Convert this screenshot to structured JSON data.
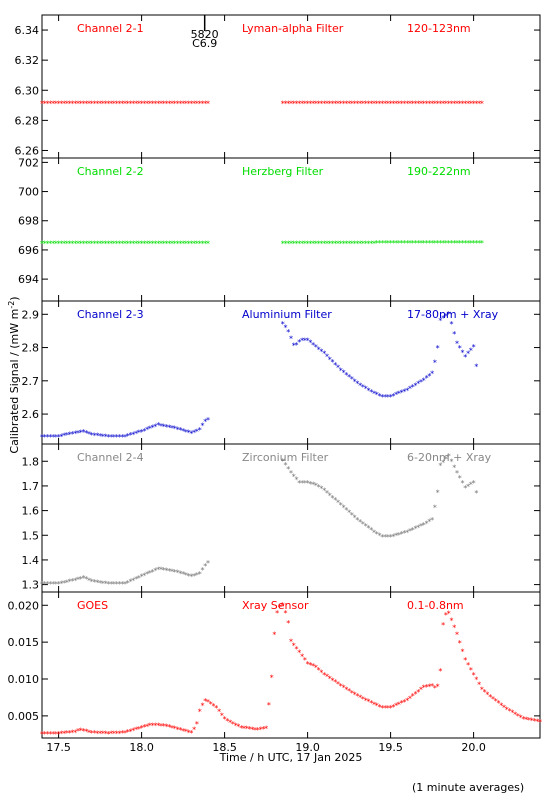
{
  "chart_data": {
    "type": "scatter",
    "xlabel": "Time / h UTC, 17 Jan 2025",
    "ylabel": "Calibrated Signal / (mW m",
    "ylabel_sup": "-2",
    "ylabel_close": ")",
    "xlim": [
      17.4,
      20.4
    ],
    "x_ticks": [
      "17.5",
      "18.0",
      "18.5",
      "19.0",
      "19.5",
      "20.0"
    ],
    "footnote": "(1 minute averages)",
    "annotation": {
      "x": 18.38,
      "line1": "5820",
      "line2": "C6.9"
    },
    "panels": [
      {
        "channel": "Channel 2-1",
        "filter": "Lyman-alpha Filter",
        "band": "120-123nm",
        "color": "#ff0000",
        "label_color": "#ff0000",
        "ylim": [
          6.255,
          6.35
        ],
        "yticks": [
          "6.26",
          "6.28",
          "6.30",
          "6.32",
          "6.34"
        ],
        "series": [
          {
            "x": [
              17.4,
              18.4
            ],
            "y": [
              6.291,
              6.291
            ]
          },
          {
            "x": [
              18.85,
              20.05
            ],
            "y": [
              6.291,
              6.291
            ]
          }
        ]
      },
      {
        "channel": "Channel 2-2",
        "filter": "Herzberg Filter",
        "band": "190-222nm",
        "color": "#00dd00",
        "label_color": "#00dd00",
        "ylim": [
          692.5,
          702.3
        ],
        "yticks": [
          "694",
          "696",
          "698",
          "700",
          "702"
        ],
        "series": [
          {
            "x": [
              17.4,
              18.4
            ],
            "y": [
              696.4,
              696.4
            ]
          },
          {
            "x": [
              18.85,
              20.05
            ],
            "y": [
              696.4,
              696.45
            ]
          }
        ]
      },
      {
        "channel": "Channel 2-3",
        "filter": "Aluminium Filter",
        "band": "17-80nm + Xray",
        "color": "#0000cc",
        "label_color": "#0000cc",
        "ylim": [
          2.51,
          2.94
        ],
        "yticks": [
          "2.6",
          "2.7",
          "2.8",
          "2.9"
        ],
        "series": [
          {
            "x": [
              17.4,
              17.5,
              17.6,
              17.65,
              17.7,
              17.8,
              17.9,
              18.0,
              18.1,
              18.2,
              18.3,
              18.35,
              18.38,
              18.4
            ],
            "y": [
              2.53,
              2.53,
              2.54,
              2.545,
              2.535,
              2.53,
              2.53,
              2.545,
              2.565,
              2.555,
              2.54,
              2.55,
              2.575,
              2.58
            ]
          },
          {
            "x": [
              18.85,
              18.88,
              18.92,
              18.96,
              19.0,
              19.05,
              19.1,
              19.2,
              19.3,
              19.4,
              19.45,
              19.5,
              19.6,
              19.7,
              19.75,
              19.78,
              19.8,
              19.85,
              19.9,
              19.95,
              20.0,
              20.02
            ],
            "y": [
              2.87,
              2.85,
              2.8,
              2.82,
              2.82,
              2.8,
              2.78,
              2.73,
              2.69,
              2.66,
              2.65,
              2.65,
              2.67,
              2.7,
              2.72,
              2.78,
              2.88,
              2.9,
              2.81,
              2.77,
              2.8,
              2.73
            ]
          }
        ]
      },
      {
        "channel": "Channel 2-4",
        "filter": "Zirconium Filter",
        "band": "6-20nm + Xray",
        "color": "#777777",
        "label_color": "#888888",
        "ylim": [
          1.27,
          1.87
        ],
        "yticks": [
          "1.3",
          "1.4",
          "1.5",
          "1.6",
          "1.7",
          "1.8"
        ],
        "series": [
          {
            "x": [
              17.4,
              17.5,
              17.6,
              17.65,
              17.7,
              17.8,
              17.9,
              18.0,
              18.1,
              18.2,
              18.3,
              18.35,
              18.38,
              18.4
            ],
            "y": [
              1.3,
              1.3,
              1.315,
              1.325,
              1.31,
              1.3,
              1.3,
              1.33,
              1.36,
              1.35,
              1.33,
              1.34,
              1.37,
              1.385
            ]
          },
          {
            "x": [
              18.85,
              18.9,
              18.95,
              19.0,
              19.05,
              19.1,
              19.2,
              19.3,
              19.4,
              19.45,
              19.5,
              19.6,
              19.7,
              19.75,
              19.78,
              19.8,
              19.85,
              19.9,
              19.95,
              20.0,
              20.02
            ],
            "y": [
              1.8,
              1.75,
              1.71,
              1.71,
              1.7,
              1.68,
              1.62,
              1.56,
              1.51,
              1.49,
              1.49,
              1.51,
              1.54,
              1.56,
              1.65,
              1.78,
              1.82,
              1.75,
              1.69,
              1.71,
              1.66
            ]
          }
        ]
      },
      {
        "channel": "GOES",
        "filter": "Xray Sensor",
        "band": "0.1-0.8nm",
        "color": "#ff0000",
        "label_color": "#ff0000",
        "ylim": [
          0.002,
          0.0218
        ],
        "yticks": [
          "0.005",
          "0.010",
          "0.015",
          "0.020"
        ],
        "series": [
          {
            "x": [
              17.4,
              17.5,
              17.6,
              17.63,
              17.7,
              17.8,
              17.9,
              18.0,
              18.05,
              18.1,
              18.15,
              18.2,
              18.3,
              18.33,
              18.35,
              18.38,
              18.4,
              18.45,
              18.5,
              18.55,
              18.6,
              18.7,
              18.75,
              18.78,
              18.8,
              18.82,
              18.85,
              18.88,
              18.9,
              18.95,
              19.0,
              19.05,
              19.1,
              19.2,
              19.3,
              19.4,
              19.45,
              19.5,
              19.6,
              19.7,
              19.75,
              19.78,
              19.8,
              19.82,
              19.85,
              19.9,
              19.95,
              20.0,
              20.05,
              20.1,
              20.2,
              20.3,
              20.4
            ],
            "y": [
              0.0025,
              0.0025,
              0.0027,
              0.003,
              0.0026,
              0.0025,
              0.0026,
              0.0033,
              0.0036,
              0.0036,
              0.0035,
              0.0032,
              0.0026,
              0.0035,
              0.0055,
              0.007,
              0.0068,
              0.006,
              0.0045,
              0.0038,
              0.0033,
              0.003,
              0.0032,
              0.009,
              0.016,
              0.0195,
              0.02,
              0.018,
              0.015,
              0.0135,
              0.012,
              0.0115,
              0.0105,
              0.009,
              0.0076,
              0.0065,
              0.006,
              0.006,
              0.007,
              0.0088,
              0.009,
              0.0085,
              0.011,
              0.0185,
              0.0188,
              0.016,
              0.0125,
              0.0105,
              0.0085,
              0.0075,
              0.0058,
              0.0045,
              0.0041
            ]
          }
        ]
      }
    ]
  }
}
